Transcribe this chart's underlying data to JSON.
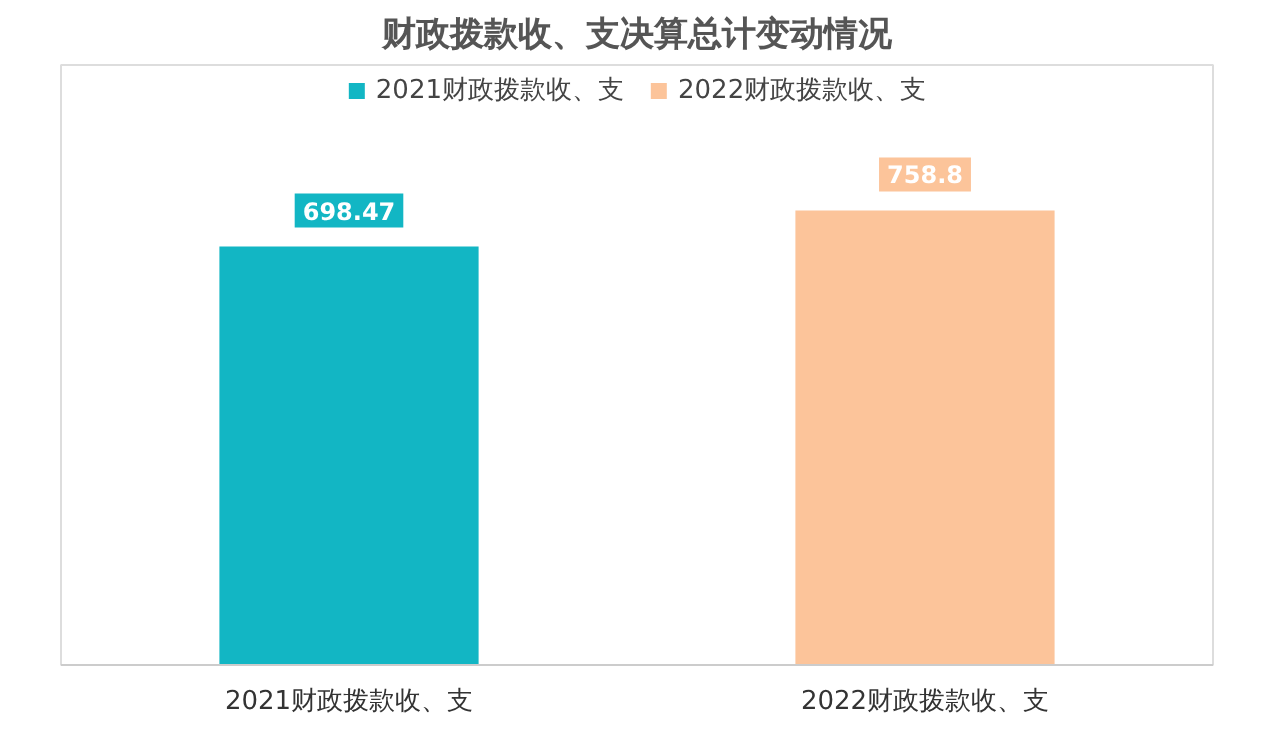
{
  "chart_data": {
    "type": "bar",
    "title": "财政拨款收、支决算总计变动情况",
    "categories": [
      "2021财政拨款收、支",
      "2022财政拨款收、支"
    ],
    "series": [
      {
        "name": "2021财政拨款收、支",
        "color": "#12b6c4",
        "values": [
          698.47,
          null
        ]
      },
      {
        "name": "2022财政拨款收、支",
        "color": "#fcc49a",
        "values": [
          null,
          758.8
        ]
      }
    ],
    "tick_labels": "x",
    "grid": false,
    "legend": "top",
    "data_labels": true
  }
}
